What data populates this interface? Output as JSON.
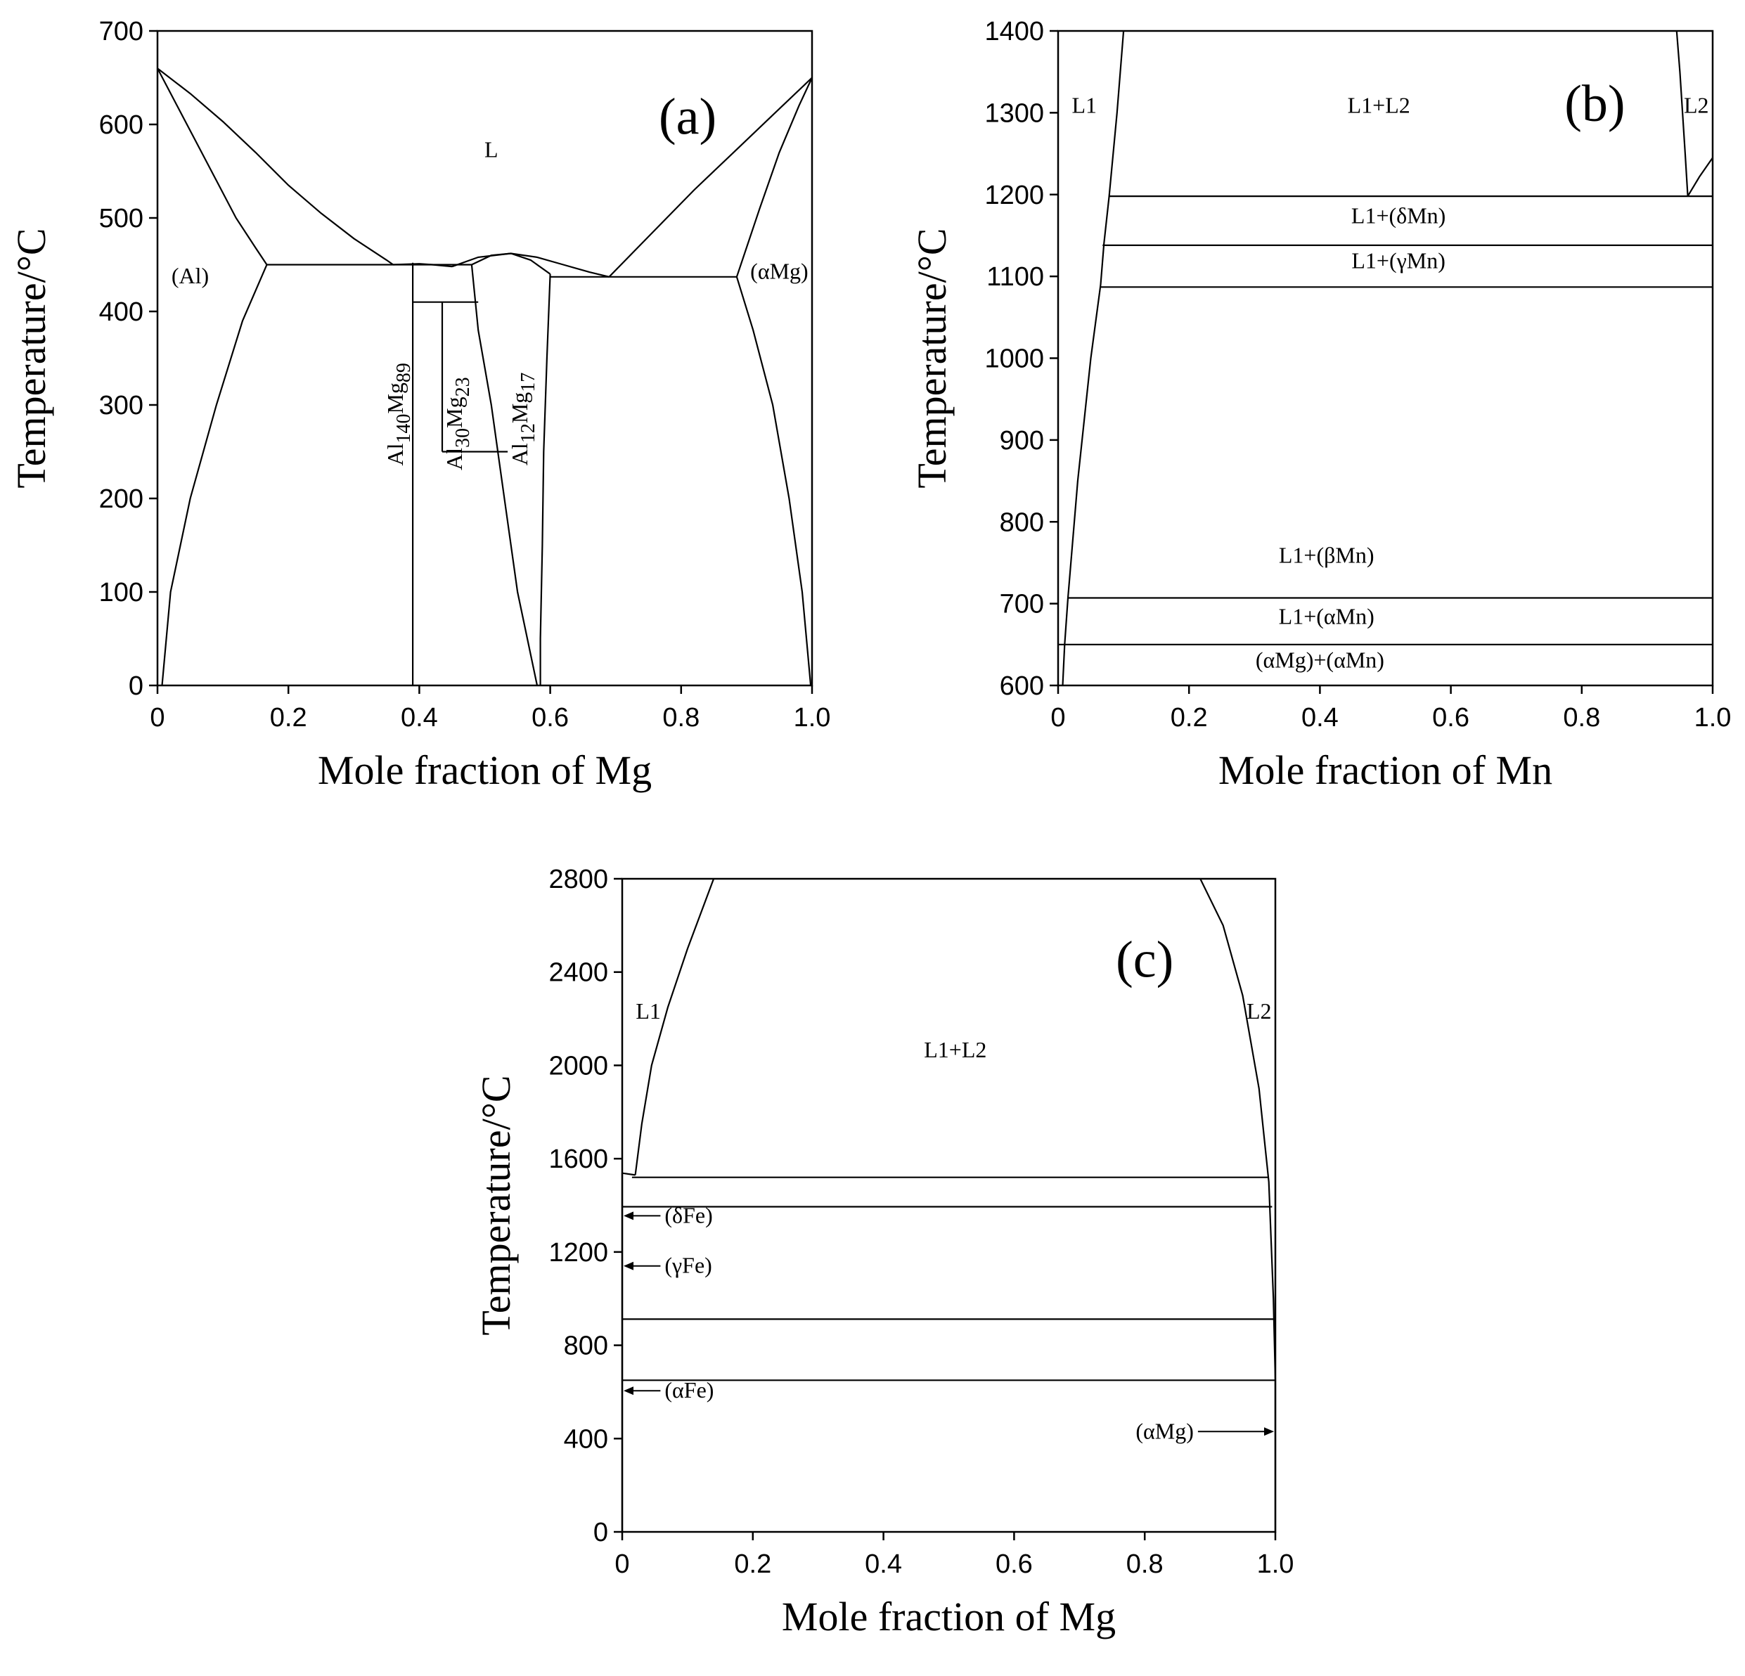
{
  "chart_data": [
    {
      "panel": "(a)",
      "type": "line",
      "title": "",
      "xlabel": "Mole fraction of Mg",
      "ylabel": "Temperature/°C",
      "xlim": [
        0,
        1.0
      ],
      "ylim": [
        0,
        700
      ],
      "xticks": [
        "0",
        "0.2",
        "0.4",
        "0.6",
        "0.8",
        "1.0"
      ],
      "xtick_values": [
        0,
        0.2,
        0.4,
        0.6,
        0.8,
        1.0
      ],
      "yticks": [
        "0",
        "100",
        "200",
        "300",
        "400",
        "500",
        "600",
        "700"
      ],
      "ytick_values": [
        0,
        100,
        200,
        300,
        400,
        500,
        600,
        700
      ],
      "series": [
        {
          "name": "liquidus-al",
          "color": "#000000",
          "points": [
            [
              0,
              660
            ],
            [
              0.05,
              633
            ],
            [
              0.1,
              603
            ],
            [
              0.15,
              570
            ],
            [
              0.2,
              535
            ],
            [
              0.25,
              505
            ],
            [
              0.3,
              478
            ],
            [
              0.35,
              455
            ],
            [
              0.36,
              450
            ]
          ]
        },
        {
          "name": "solidus-al",
          "color": "#000000",
          "points": [
            [
              0,
              660
            ],
            [
              0.03,
              620
            ],
            [
              0.06,
              580
            ],
            [
              0.09,
              540
            ],
            [
              0.12,
              500
            ],
            [
              0.15,
              468
            ],
            [
              0.167,
              450
            ]
          ]
        },
        {
          "name": "solvus-al",
          "color": "#000000",
          "points": [
            [
              0.007,
              0
            ],
            [
              0.02,
              100
            ],
            [
              0.05,
              200
            ],
            [
              0.09,
              300
            ],
            [
              0.13,
              390
            ],
            [
              0.167,
              450
            ]
          ]
        },
        {
          "name": "liquidus-al3mg2",
          "color": "#000000",
          "points": [
            [
              0.36,
              450
            ],
            [
              0.4,
              451
            ],
            [
              0.42,
              450
            ],
            [
              0.45,
              448
            ]
          ]
        },
        {
          "name": "al140mg89-left",
          "color": "#000000",
          "points": [
            [
              0.39,
              0
            ],
            [
              0.39,
              452
            ]
          ]
        },
        {
          "name": "al30mg23-line",
          "color": "#000000",
          "points": [
            [
              0.435,
              250
            ],
            [
              0.435,
              410
            ]
          ]
        },
        {
          "name": "al12mg17-liquidus",
          "color": "#000000",
          "points": [
            [
              0.45,
              448
            ],
            [
              0.49,
              458
            ],
            [
              0.54,
              462
            ],
            [
              0.58,
              458
            ],
            [
              0.62,
              450
            ],
            [
              0.66,
              442
            ],
            [
              0.69,
              437
            ]
          ]
        },
        {
          "name": "al12mg17-left",
          "color": "#000000",
          "points": [
            [
              0.48,
              450
            ],
            [
              0.49,
              380
            ],
            [
              0.51,
              300
            ],
            [
              0.53,
              200
            ],
            [
              0.55,
              100
            ],
            [
              0.58,
              0
            ]
          ]
        },
        {
          "name": "al12mg17-right",
          "color": "#000000",
          "points": [
            [
              0.6,
              440
            ],
            [
              0.595,
              350
            ],
            [
              0.59,
              250
            ],
            [
              0.588,
              150
            ],
            [
              0.585,
              50
            ],
            [
              0.585,
              0
            ]
          ]
        },
        {
          "name": "al12mg17-top",
          "color": "#000000",
          "points": [
            [
              0.48,
              450
            ],
            [
              0.51,
              460
            ],
            [
              0.54,
              462
            ],
            [
              0.57,
              455
            ],
            [
              0.6,
              440
            ]
          ]
        },
        {
          "name": "liquidus-mg",
          "color": "#000000",
          "points": [
            [
              0.69,
              437
            ],
            [
              0.75,
              480
            ],
            [
              0.82,
              530
            ],
            [
              0.88,
              570
            ],
            [
              0.94,
              610
            ],
            [
              1.0,
              650
            ]
          ]
        },
        {
          "name": "solidus-mg",
          "color": "#000000",
          "points": [
            [
              0.885,
              437
            ],
            [
              0.92,
              510
            ],
            [
              0.95,
              570
            ],
            [
              0.98,
              620
            ],
            [
              1.0,
              650
            ]
          ]
        },
        {
          "name": "solvus-mg",
          "color": "#000000",
          "points": [
            [
              0.885,
              437
            ],
            [
              0.91,
              380
            ],
            [
              0.94,
              300
            ],
            [
              0.965,
              200
            ],
            [
              0.985,
              100
            ],
            [
              0.998,
              0
            ]
          ]
        },
        {
          "name": "eutectic-450",
          "color": "#e8445a",
          "points": [
            [
              0.167,
              450
            ],
            [
              0.39,
              450
            ]
          ]
        },
        {
          "name": "peritectic-450",
          "color": "#e8445a",
          "points": [
            [
              0.39,
              450
            ],
            [
              0.48,
              450
            ]
          ]
        },
        {
          "name": "isotherm-410",
          "color": "#e8445a",
          "points": [
            [
              0.39,
              410
            ],
            [
              0.49,
              410
            ]
          ]
        },
        {
          "name": "isotherm-250",
          "color": "#e8445a",
          "points": [
            [
              0.435,
              250
            ],
            [
              0.535,
              250
            ]
          ]
        },
        {
          "name": "eutectic-437",
          "color": "#e8445a",
          "points": [
            [
              0.6,
              437
            ],
            [
              0.885,
              437
            ]
          ]
        }
      ],
      "annotations": [
        {
          "text": "(Al)",
          "x": 0.05,
          "y": 430
        },
        {
          "text": "L",
          "x": 0.51,
          "y": 565
        },
        {
          "text": "(αMg)",
          "x": 0.95,
          "y": 435
        },
        {
          "text": "(a)",
          "x": 0.81,
          "y": 590,
          "role": "panel"
        },
        {
          "text": "Al",
          "sub": "140",
          "text2": "Mg",
          "sub2": "89",
          "x": 0.375,
          "y": 290,
          "rotate": -90
        },
        {
          "text": "Al",
          "sub": "30",
          "text2": "Mg",
          "sub2": "23",
          "x": 0.465,
          "y": 280,
          "rotate": -90
        },
        {
          "text": "Al",
          "sub": "12",
          "text2": "Mg",
          "sub2": "17",
          "x": 0.565,
          "y": 285,
          "rotate": -90
        }
      ]
    },
    {
      "panel": "(b)",
      "type": "line",
      "title": "",
      "xlabel": "Mole fraction of Mn",
      "ylabel": "Temperature/°C",
      "xlim": [
        0,
        1.0
      ],
      "ylim": [
        600,
        1400
      ],
      "xticks": [
        "0",
        "0.2",
        "0.4",
        "0.6",
        "0.8",
        "1.0"
      ],
      "xtick_values": [
        0,
        0.2,
        0.4,
        0.6,
        0.8,
        1.0
      ],
      "yticks": [
        "600",
        "700",
        "800",
        "900",
        "1000",
        "1100",
        "1200",
        "1300",
        "1400"
      ],
      "ytick_values": [
        600,
        700,
        800,
        900,
        1000,
        1100,
        1200,
        1300,
        1400
      ],
      "series": [
        {
          "name": "l1-boundary",
          "color": "#000000",
          "points": [
            [
              0.007,
              600
            ],
            [
              0.01,
              650
            ],
            [
              0.015,
              707
            ],
            [
              0.03,
              850
            ],
            [
              0.05,
              1000
            ],
            [
              0.065,
              1090
            ],
            [
              0.07,
              1140
            ],
            [
              0.078,
              1198
            ],
            [
              0.09,
              1300
            ],
            [
              0.1,
              1400
            ]
          ]
        },
        {
          "name": "l2-boundary-left",
          "color": "#000000",
          "points": [
            [
              0.945,
              1400
            ],
            [
              0.95,
              1350
            ],
            [
              0.958,
              1250
            ],
            [
              0.962,
              1198
            ]
          ]
        },
        {
          "name": "l2-boundary-right",
          "color": "#000000",
          "points": [
            [
              0.962,
              1198
            ],
            [
              0.98,
              1222
            ],
            [
              1.0,
              1245
            ]
          ]
        },
        {
          "name": "isotherm-1198",
          "color": "#e8445a",
          "points": [
            [
              0.078,
              1198
            ],
            [
              1.0,
              1198
            ]
          ]
        },
        {
          "name": "isotherm-1138",
          "color": "#e8445a",
          "points": [
            [
              0.068,
              1138
            ],
            [
              1.0,
              1138
            ]
          ]
        },
        {
          "name": "isotherm-1087",
          "color": "#f08a96",
          "points": [
            [
              0.065,
              1087
            ],
            [
              1.0,
              1087
            ]
          ]
        },
        {
          "name": "isotherm-707",
          "color": "#e8445a",
          "points": [
            [
              0.015,
              707
            ],
            [
              1.0,
              707
            ]
          ]
        },
        {
          "name": "isotherm-650",
          "color": "#e8445a",
          "points": [
            [
              0.0,
              650
            ],
            [
              1.0,
              650
            ]
          ]
        }
      ],
      "annotations": [
        {
          "text": "L1",
          "x": 0.04,
          "y": 1300
        },
        {
          "text": "L1+L2",
          "x": 0.49,
          "y": 1300
        },
        {
          "text": "L2",
          "x": 0.975,
          "y": 1300
        },
        {
          "text": "(b)",
          "x": 0.82,
          "y": 1290,
          "role": "panel"
        },
        {
          "text": "L1+(δMn)",
          "x": 0.52,
          "y": 1165
        },
        {
          "text": "L1+(γMn)",
          "x": 0.52,
          "y": 1110
        },
        {
          "text": "L1+(βMn)",
          "x": 0.41,
          "y": 750
        },
        {
          "text": "L1+(αMn)",
          "x": 0.41,
          "y": 675
        },
        {
          "text": "(αMg)+(αMn)",
          "x": 0.4,
          "y": 622
        }
      ]
    },
    {
      "panel": "(c)",
      "type": "line",
      "title": "",
      "xlabel": "Mole fraction of Mg",
      "ylabel": "Temperature/°C",
      "xlim": [
        0,
        1.0
      ],
      "ylim": [
        0,
        2800
      ],
      "xticks": [
        "0",
        "0.2",
        "0.4",
        "0.6",
        "0.8",
        "1.0"
      ],
      "xtick_values": [
        0,
        0.2,
        0.4,
        0.6,
        0.8,
        1.0
      ],
      "yticks": [
        "0",
        "400",
        "800",
        "1200",
        "1600",
        "2000",
        "2400",
        "2800"
      ],
      "ytick_values": [
        0,
        400,
        800,
        1200,
        1600,
        2000,
        2400,
        2800
      ],
      "series": [
        {
          "name": "l1-boundary",
          "color": "#000000",
          "points": [
            [
              0.02,
              1530
            ],
            [
              0.03,
              1750
            ],
            [
              0.045,
              2000
            ],
            [
              0.07,
              2250
            ],
            [
              0.1,
              2500
            ],
            [
              0.14,
              2800
            ]
          ]
        },
        {
          "name": "l1-short",
          "color": "#000000",
          "points": [
            [
              0.0,
              1538
            ],
            [
              0.02,
              1530
            ]
          ]
        },
        {
          "name": "l2-boundary",
          "color": "#000000",
          "points": [
            [
              0.885,
              2800
            ],
            [
              0.92,
              2600
            ],
            [
              0.95,
              2300
            ],
            [
              0.975,
              1900
            ],
            [
              0.99,
              1500
            ],
            [
              0.997,
              1000
            ],
            [
              1.0,
              650
            ],
            [
              1.0,
              0
            ]
          ]
        },
        {
          "name": "fe-side",
          "color": "#000000",
          "points": [
            [
              0.0,
              0
            ],
            [
              0.0,
              1538
            ]
          ]
        },
        {
          "name": "isotherm-1520",
          "color": "#e8445a",
          "points": [
            [
              0.015,
              1520
            ],
            [
              0.99,
              1520
            ]
          ]
        },
        {
          "name": "isotherm-1394",
          "color": "#e8445a",
          "points": [
            [
              0.0,
              1394
            ],
            [
              0.995,
              1394
            ]
          ]
        },
        {
          "name": "isotherm-912",
          "color": "#e8445a",
          "points": [
            [
              0.0,
              912
            ],
            [
              1.0,
              912
            ]
          ]
        },
        {
          "name": "isotherm-650",
          "color": "#e8445a",
          "points": [
            [
              0.0,
              650
            ],
            [
              1.0,
              650
            ]
          ]
        }
      ],
      "annotations": [
        {
          "text": "L1",
          "x": 0.04,
          "y": 2200
        },
        {
          "text": "L1+L2",
          "x": 0.51,
          "y": 2035
        },
        {
          "text": "L2",
          "x": 0.975,
          "y": 2200
        },
        {
          "text": "(c)",
          "x": 0.8,
          "y": 2380,
          "role": "panel"
        },
        {
          "text": "(δFe)",
          "x": 0.065,
          "y": 1325,
          "arrow": "left"
        },
        {
          "text": "(γFe)",
          "x": 0.065,
          "y": 1110,
          "arrow": "left"
        },
        {
          "text": "(αFe)",
          "x": 0.065,
          "y": 575,
          "arrow": "left"
        },
        {
          "text": "(αMg)",
          "x": 0.875,
          "y": 400,
          "arrow": "right"
        }
      ]
    }
  ]
}
